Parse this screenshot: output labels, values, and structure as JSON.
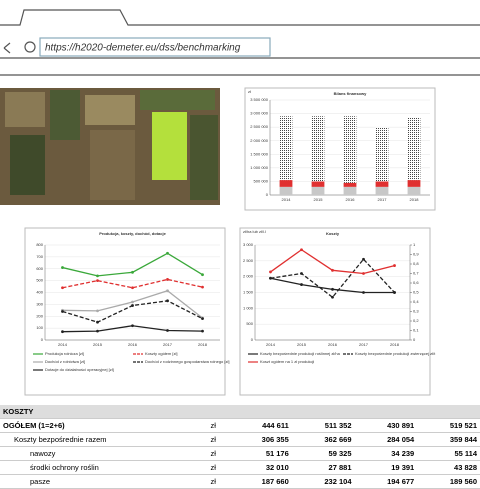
{
  "address_bar": {
    "url": "https://h2020-demeter.eu/dss/benchmarking"
  },
  "chart_data": [
    {
      "type": "bar",
      "title": "Bilans finansowy",
      "y_label": "zł",
      "stacked": true,
      "categories": [
        "2014",
        "2015",
        "2016",
        "2017",
        "2018"
      ],
      "ylim": [
        0,
        3500000
      ],
      "yticks": [
        0,
        {
          "value": 500000,
          "label": "500 000"
        },
        {
          "value": 1000000,
          "label": "1 000 000"
        },
        {
          "value": 1500000,
          "label": "1 500 000"
        },
        {
          "value": 2000000,
          "label": "2 000 000"
        },
        {
          "value": 2500000,
          "label": "2 500 000"
        },
        {
          "value": 3000000,
          "label": "3 000 000"
        },
        {
          "value": 3500000,
          "label": "3 500 000"
        }
      ],
      "series": [
        {
          "color": "#c8c8c8",
          "values": [
            300000,
            300000,
            300000,
            300000,
            300000
          ]
        },
        {
          "color": "#e03030",
          "values": [
            250000,
            200000,
            150000,
            200000,
            250000
          ]
        },
        {
          "color": "#555555",
          "pattern": true,
          "values": [
            2350000,
            2400000,
            2450000,
            2000000,
            2300000
          ]
        }
      ]
    },
    {
      "type": "line",
      "title": "Produkcja, koszty, dochód, dotacje",
      "categories": [
        "2014",
        "2015",
        "2016",
        "2017",
        "2018"
      ],
      "ylim": [
        0,
        800
      ],
      "yticks": [
        0,
        100,
        200,
        300,
        400,
        500,
        600,
        700,
        800
      ],
      "series": [
        {
          "name": "Produkcja rolnicza [zł]",
          "color": "#3aa83a",
          "dash": false,
          "values": [
            610,
            540,
            570,
            730,
            550
          ]
        },
        {
          "name": "Koszty ogółem [zł]",
          "color": "#e03030",
          "dash": true,
          "values": [
            440,
            500,
            440,
            510,
            445
          ]
        },
        {
          "name": "Dochód z rolnictwa [zł]",
          "color": "#aaaaaa",
          "dash": false,
          "values": [
            250,
            245,
            320,
            415,
            185
          ]
        },
        {
          "name": "Dochód z rodzinnego gospodarstwa rolnego [zł]",
          "color": "#222222",
          "dash": true,
          "values": [
            240,
            150,
            290,
            330,
            180
          ]
        },
        {
          "name": "Dotacje do działalności operacyjnej [zł]",
          "color": "#222222",
          "dash": false,
          "values": [
            70,
            75,
            120,
            80,
            75
          ]
        }
      ]
    },
    {
      "type": "line",
      "title": "Koszty",
      "y_label": "zł/ha lub zł/l.l",
      "categories": [
        "2014",
        "2015",
        "2016",
        "2017",
        "2018"
      ],
      "ylim": [
        0,
        3000
      ],
      "yticks": [
        0,
        500,
        {
          "value": 1000,
          "label": "1 000"
        },
        {
          "value": 1500,
          "label": "1 500"
        },
        {
          "value": 2000,
          "label": "2 000"
        },
        {
          "value": 2500,
          "label": "2 500"
        },
        {
          "value": 3000,
          "label": "3 000"
        }
      ],
      "y2lim": [
        0,
        1
      ],
      "y2ticks": [
        0,
        {
          "value": 0.1,
          "label": "0,1"
        },
        {
          "value": 0.2,
          "label": "0,2"
        },
        {
          "value": 0.3,
          "label": "0,3"
        },
        {
          "value": 0.4,
          "label": "0,4"
        },
        {
          "value": 0.5,
          "label": "0,5"
        },
        {
          "value": 0.6,
          "label": "0,6"
        },
        {
          "value": 0.7,
          "label": "0,7"
        },
        {
          "value": 0.8,
          "label": "0,8"
        },
        {
          "value": 0.9,
          "label": "0,9"
        },
        1
      ],
      "series": [
        {
          "name": "Koszty bezpośrednie produkcji roślinnej zł/ha",
          "color": "#222222",
          "dash": false,
          "values": [
            1950,
            1750,
            1600,
            1500,
            1500
          ]
        },
        {
          "name": "Koszty bezpośrednie produkcji zwierzęcej zł/t",
          "color": "#222222",
          "dash": true,
          "axis": "y2",
          "values": [
            0.65,
            0.7,
            0.45,
            0.85,
            0.5
          ]
        },
        {
          "name": "Koszt ogółem na 1 zł produkcji",
          "color": "#e03030",
          "dash": false,
          "values": [
            2150,
            2850,
            2200,
            2100,
            2350
          ]
        }
      ]
    }
  ],
  "table": {
    "title": "KOSZTY",
    "rows": [
      [
        "OGÓŁEM (1=2+6)",
        "zł",
        "444 611",
        "511 352",
        "430 891",
        "519 521"
      ],
      [
        "Koszty bezpośrednie razem",
        "zł",
        "306 355",
        "362 669",
        "284 054",
        "359 844"
      ],
      [
        "nawozy",
        "zł",
        "51 176",
        "59 325",
        "34 239",
        "55 114"
      ],
      [
        "środki ochrony roślin",
        "zł",
        "32 010",
        "27 881",
        "19 391",
        "43 828"
      ],
      [
        "pasze",
        "zł",
        "187 660",
        "232 104",
        "194 677",
        "189 560"
      ]
    ]
  }
}
